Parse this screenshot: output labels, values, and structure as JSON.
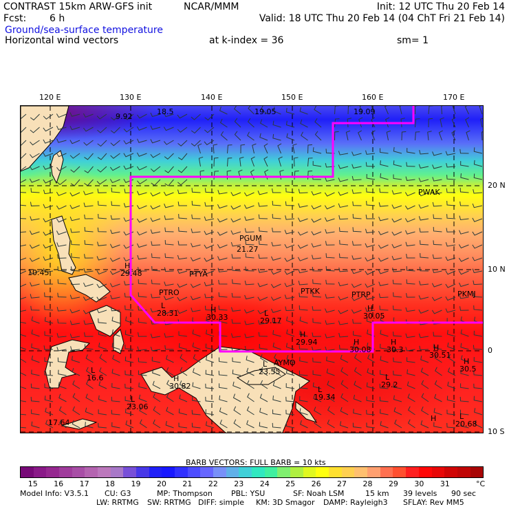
{
  "header": {
    "title": "CONTRAST 15km ARW-GFS init",
    "org": "NCAR/MMM",
    "init": "Init: 12 UTC Thu 20 Feb 14",
    "fcst_label": "Fcst:",
    "fcst_value": "6 h",
    "valid": "Valid: 18 UTC Thu 20 Feb 14 (04 ChT Fri 21 Feb 14)",
    "field1": "Ground/sea-surface temperature",
    "field2": "Horizontal wind vectors",
    "kindex": "at k-index =  36",
    "sm": "sm= 1"
  },
  "axes": {
    "lon": [
      "120 E",
      "130 E",
      "140 E",
      "150 E",
      "160 E",
      "170 E"
    ],
    "lat": [
      "20 N",
      "10 N",
      "0",
      "10 S"
    ]
  },
  "stations": [
    "PGUM",
    "PTYA",
    "PTRO",
    "PTKK",
    "PTRP",
    "PKMJ",
    "PWAK",
    "AYMO"
  ],
  "extrema": [
    {
      "m": "",
      "v": "9.92"
    },
    {
      "m": "",
      "v": "18.5"
    },
    {
      "m": "",
      "v": "19.05"
    },
    {
      "m": "",
      "v": "19.09"
    },
    {
      "m": "",
      "v": "21.27"
    },
    {
      "m": "",
      "v": "10.45"
    },
    {
      "m": "H",
      "v": "29.48"
    },
    {
      "m": "L",
      "v": "28.31"
    },
    {
      "m": "H",
      "v": "30.33"
    },
    {
      "m": "L",
      "v": "29.17"
    },
    {
      "m": "H",
      "v": "29.94"
    },
    {
      "m": "H",
      "v": "30.05"
    },
    {
      "m": "H",
      "v": "30.08"
    },
    {
      "m": "H",
      "v": "30.3"
    },
    {
      "m": "H",
      "v": "30.51"
    },
    {
      "m": "H",
      "v": "30.5"
    },
    {
      "m": "L",
      "v": "23.55"
    },
    {
      "m": "L",
      "v": "16.6"
    },
    {
      "m": "H",
      "v": "30.82"
    },
    {
      "m": "L",
      "v": "23.06"
    },
    {
      "m": "L",
      "v": "29.2"
    },
    {
      "m": "L",
      "v": "19.34"
    },
    {
      "m": "L",
      "v": "20.68"
    },
    {
      "m": "",
      "v": "17.64"
    },
    {
      "m": "H",
      "v": ""
    }
  ],
  "legend": {
    "barb_note": "BARB VECTORS:  FULL BARB = 10 kts",
    "ticks": [
      "15",
      "16",
      "17",
      "18",
      "19",
      "20",
      "21",
      "22",
      "23",
      "24",
      "25",
      "26",
      "27",
      "28",
      "29",
      "30",
      "31"
    ],
    "unit": "°C",
    "colors": [
      "#780a78",
      "#8a1a88",
      "#962890",
      "#a03c9c",
      "#a84ea6",
      "#b464b0",
      "#bc78bc",
      "#a878c8",
      "#7850d8",
      "#4838e8",
      "#2020f8",
      "#1818ff",
      "#3030ff",
      "#4c4cff",
      "#6666ff",
      "#7890f8",
      "#60b0e8",
      "#40d0d8",
      "#30e8c0",
      "#40f0a0",
      "#80f070",
      "#b0f040",
      "#e0f820",
      "#ffff10",
      "#ffe030",
      "#ffd050",
      "#ffc070",
      "#ffa070",
      "#ff7050",
      "#ff5030",
      "#ff2020",
      "#ff0808",
      "#e80808",
      "#d00505",
      "#c00505",
      "#a80505"
    ]
  },
  "footer": {
    "line1": [
      "Model Info: V3.5.1",
      "CU: G3",
      "MP: Thompson",
      "PBL: YSU",
      "SF: Noah LSM",
      "15 km",
      "39 levels",
      "90 sec"
    ],
    "line2": [
      "LW: RRTMG",
      "SW: RRTMG",
      "DIFF: simple",
      "KM: 3D Smagor",
      "DAMP: Rayleigh3",
      "SFLAY: Rev MM5"
    ]
  },
  "colors": {
    "domain_box": "#ff00ff",
    "title_blue": "#1010e0",
    "land": "#f8e0b8"
  }
}
